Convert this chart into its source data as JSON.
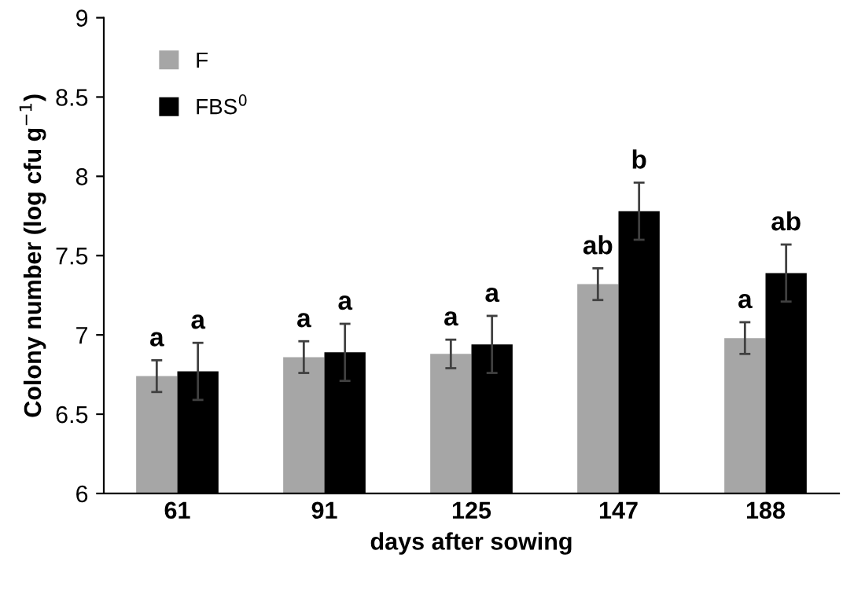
{
  "chart_data": {
    "type": "bar",
    "xlabel": "days after sowing",
    "ylabel": "Colony number (log cfu g$^{−1}$)",
    "categories": [
      "61",
      "91",
      "125",
      "147",
      "188"
    ],
    "series": [
      {
        "name": "F",
        "color": "#a6a6a6",
        "values": [
          6.74,
          6.86,
          6.88,
          7.32,
          6.98
        ],
        "errors": [
          0.1,
          0.1,
          0.09,
          0.1,
          0.1
        ]
      },
      {
        "name": "FBS$^{0}$",
        "color": "#000000",
        "values": [
          6.77,
          6.89,
          6.94,
          7.78,
          7.39
        ],
        "errors": [
          0.18,
          0.18,
          0.18,
          0.18,
          0.18
        ]
      }
    ],
    "annotations": [
      "a",
      "a",
      "a",
      "ab",
      "a",
      "a",
      "a",
      "a",
      "b",
      "ab"
    ],
    "ylim": [
      6,
      9
    ],
    "yticks": [
      6,
      6.5,
      7,
      7.5,
      8,
      8.5,
      9
    ],
    "grid": false,
    "legend": "top left"
  }
}
